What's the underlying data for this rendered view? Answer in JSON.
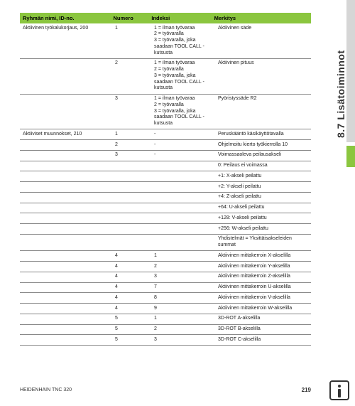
{
  "sideTab": "8.7 Lisätoiminnot",
  "footer": {
    "left": "HEIDENHAIN TNC 320",
    "page": "219"
  },
  "headers": {
    "c1": "Ryhmän nimi, ID-no.",
    "c2": "Numero",
    "c3": "Indeksi",
    "c4": "Merkitys"
  },
  "rows": [
    {
      "c1": "Aktiivinen työkalukorjaus, 200",
      "c2": "1",
      "c3": "1 = ilman työvaraa\n2 = työvaralla\n3 = työvaralla, joka saadaan TOOL CALL -kutsusta",
      "c4": "Aktiivinen säde"
    },
    {
      "c1": "",
      "c2": "2",
      "c3": "1 = ilman työvaraa\n2 = työvaralla\n3 = työvaralla, joka saadaan TOOL CALL -kutsusta",
      "c4": "Aktiivinen pituus"
    },
    {
      "c1": "",
      "c2": "3",
      "c3": "1 = ilman työvaraa\n2 = työvaralla\n3 = työvaralla, joka saadaan TOOL CALL -kutsusta",
      "c4": "Pyöristyssäde R2"
    },
    {
      "c1": "Aktiiviset muunnokset, 210",
      "c2": "1",
      "c3": "-",
      "c4": "Peruskääntö käsikäyttötavalla"
    },
    {
      "c1": "",
      "c2": "2",
      "c3": "-",
      "c4": "Ohjelmoitu kierto työkierrolla 10"
    },
    {
      "c1": "",
      "c2": "3",
      "c3": "-",
      "c4": "Voimassaoleva peilausakseli"
    },
    {
      "c1": "",
      "c2": "",
      "c3": "",
      "c4": "0: Peilaus ei voimassa"
    },
    {
      "c1": "",
      "c2": "",
      "c3": "",
      "c4": "+1: X-akseli peilattu"
    },
    {
      "c1": "",
      "c2": "",
      "c3": "",
      "c4": "+2: Y-akseli peilattu"
    },
    {
      "c1": "",
      "c2": "",
      "c3": "",
      "c4": "+4: Z-akseli peilattu"
    },
    {
      "c1": "",
      "c2": "",
      "c3": "",
      "c4": "+64: U-akseli peilattu"
    },
    {
      "c1": "",
      "c2": "",
      "c3": "",
      "c4": "+128: V-akseli peilattu"
    },
    {
      "c1": "",
      "c2": "",
      "c3": "",
      "c4": "+256: W-akseli peilattu"
    },
    {
      "c1": "",
      "c2": "",
      "c3": "",
      "c4": "Yhdistelmät = Yksittäisakseleiden summat"
    },
    {
      "c1": "",
      "c2": "4",
      "c3": "1",
      "c4": "Aktiivinen mittakerroin X-akselilla"
    },
    {
      "c1": "",
      "c2": "4",
      "c3": "2",
      "c4": "Aktiivinen mittakerroin Y-akselilla"
    },
    {
      "c1": "",
      "c2": "4",
      "c3": "3",
      "c4": "Aktiivinen mittakerroin Z-akselilla"
    },
    {
      "c1": "",
      "c2": "4",
      "c3": "7",
      "c4": "Aktiivinen mittakerroin U-akselilla"
    },
    {
      "c1": "",
      "c2": "4",
      "c3": "8",
      "c4": "Aktiivinen mittakerroin V-akselilla"
    },
    {
      "c1": "",
      "c2": "4",
      "c3": "9",
      "c4": "Aktiivinen mittakerroin W-akselilla"
    },
    {
      "c1": "",
      "c2": "5",
      "c3": "1",
      "c4": "3D-ROT A-akselilla"
    },
    {
      "c1": "",
      "c2": "5",
      "c3": "2",
      "c4": "3D-ROT B-akselilla"
    },
    {
      "c1": "",
      "c2": "5",
      "c3": "3",
      "c4": "3D-ROT C-akselilla"
    }
  ]
}
